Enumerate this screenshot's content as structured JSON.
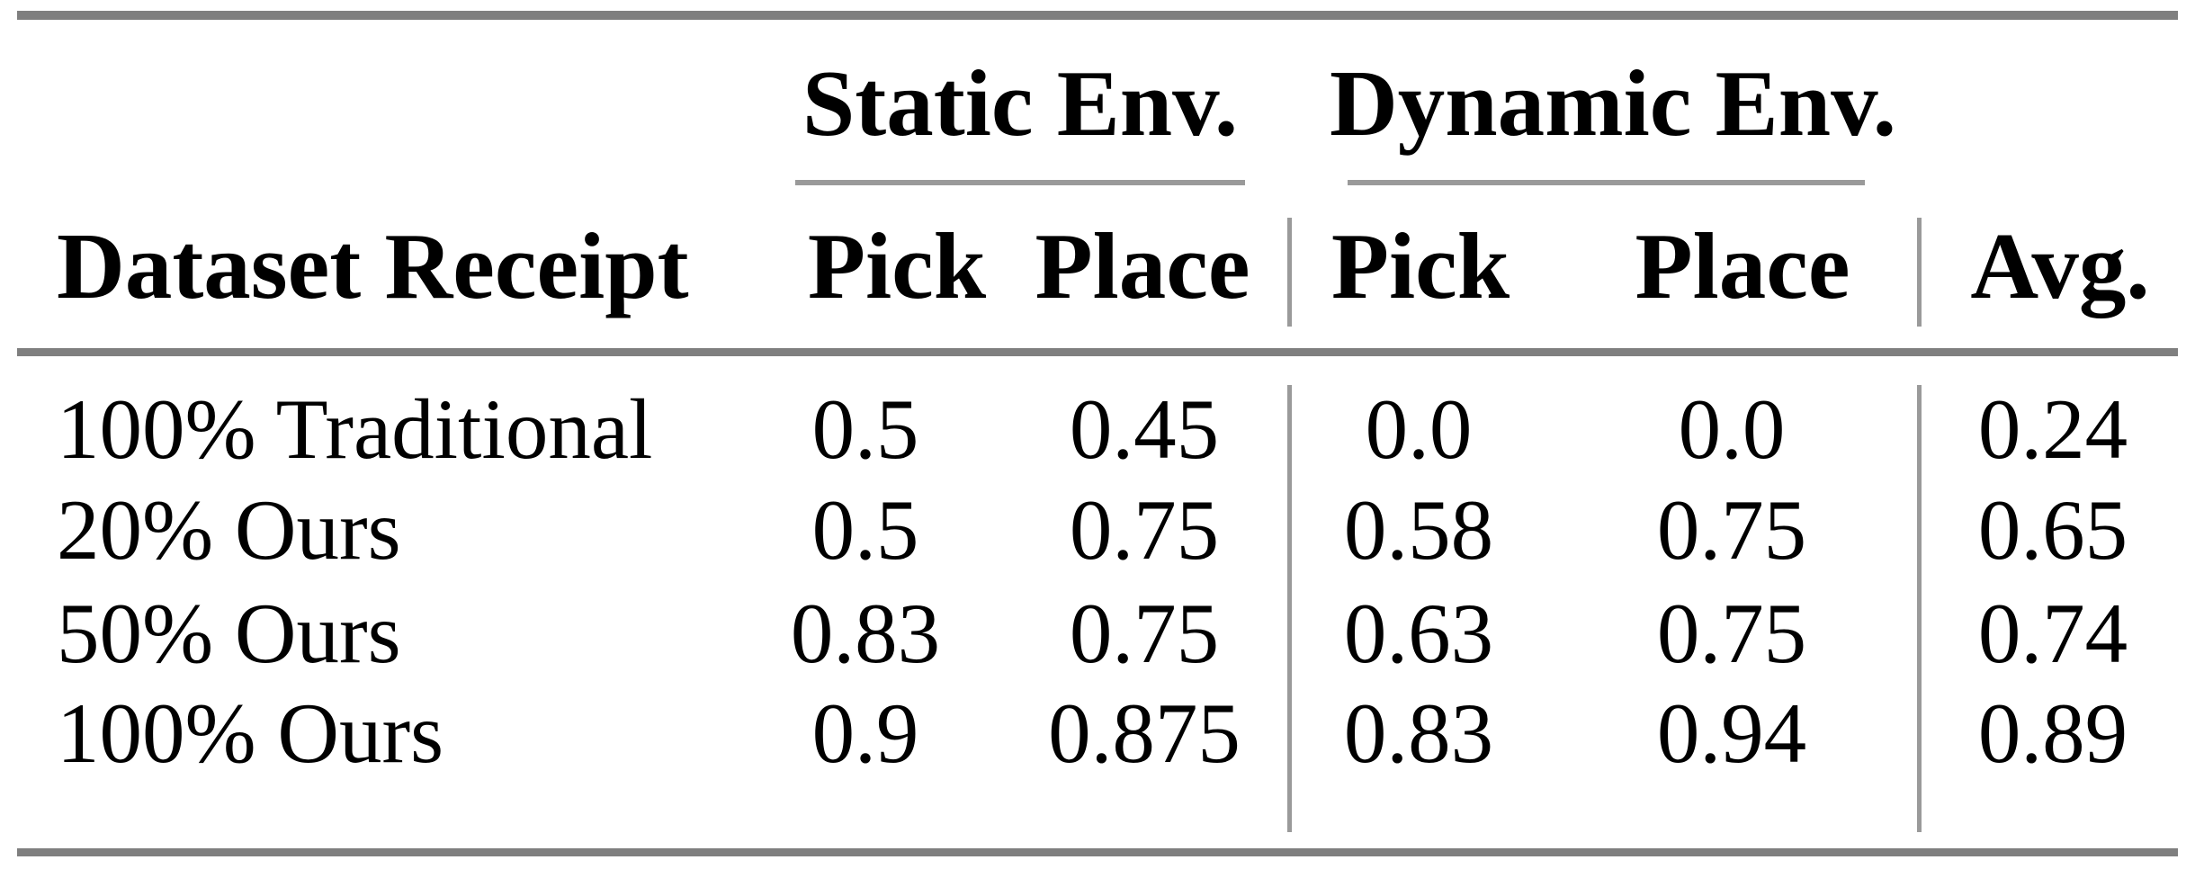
{
  "document": {
    "type": "paper-results-table",
    "header": {
      "dataset_col": "Dataset Receipt",
      "groups": [
        {
          "label": "Static Env.",
          "subcolumns": [
            "Pick",
            "Place"
          ]
        },
        {
          "label": "Dynamic Env.",
          "subcolumns": [
            "Pick",
            "Place"
          ]
        }
      ],
      "avg_col": "Avg."
    },
    "rows": [
      {
        "dataset": "100% Traditional",
        "static_pick": "0.5",
        "static_place": "0.45",
        "dynamic_pick": "0.0",
        "dynamic_place": "0.0",
        "avg": "0.24"
      },
      {
        "dataset": "20% Ours",
        "static_pick": "0.5",
        "static_place": "0.75",
        "dynamic_pick": "0.58",
        "dynamic_place": "0.75",
        "avg": "0.65"
      },
      {
        "dataset": "50% Ours",
        "static_pick": "0.83",
        "static_place": "0.75",
        "dynamic_pick": "0.63",
        "dynamic_place": "0.75",
        "avg": "0.74"
      },
      {
        "dataset": "100% Ours",
        "static_pick": "0.9",
        "static_place": "0.875",
        "dynamic_pick": "0.83",
        "dynamic_place": "0.94",
        "avg": "0.89"
      }
    ],
    "colors": {
      "heavy_rule": "#7f7f7f",
      "light_rule": "#9a9a9a",
      "text": "#000000",
      "background": "#ffffff"
    }
  },
  "chart_data": {
    "type": "table",
    "title": "",
    "columns": [
      "Dataset Receipt",
      "Static Env. Pick",
      "Static Env. Place",
      "Dynamic Env. Pick",
      "Dynamic Env. Place",
      "Avg."
    ],
    "rows": [
      [
        "100% Traditional",
        0.5,
        0.45,
        0.0,
        0.0,
        0.24
      ],
      [
        "20% Ours",
        0.5,
        0.75,
        0.58,
        0.75,
        0.65
      ],
      [
        "50% Ours",
        0.83,
        0.75,
        0.63,
        0.75,
        0.74
      ],
      [
        "100% Ours",
        0.9,
        0.875,
        0.83,
        0.94,
        0.89
      ]
    ]
  }
}
